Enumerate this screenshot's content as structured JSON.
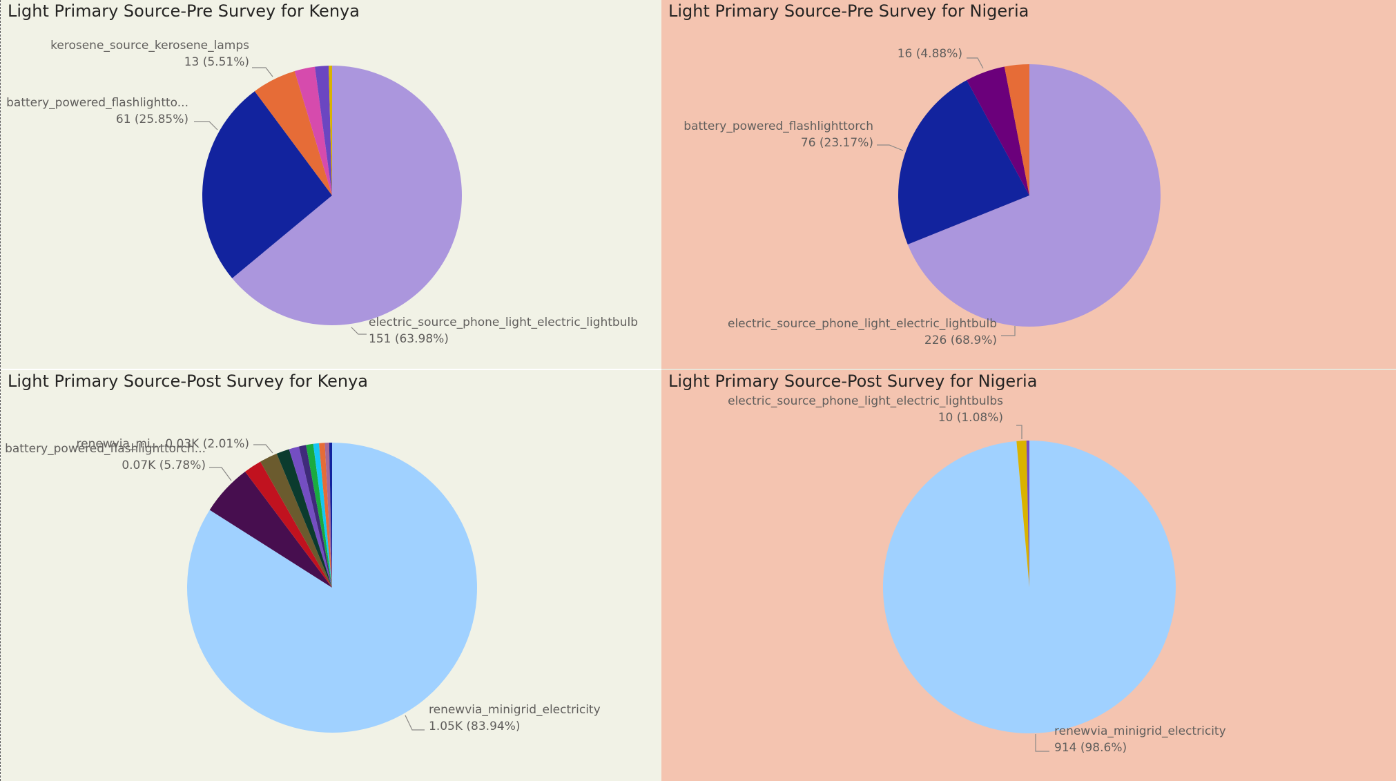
{
  "colors": {
    "left_panel_bg": "#f1f2e6",
    "right_panel_bg": "#f4c4b0",
    "title_color": "#252423",
    "label_color": "#605e5c",
    "leader_color": "#8a8886"
  },
  "chart_data": [
    {
      "type": "pie",
      "title": "Light Primary Source-Pre Survey for Kenya",
      "slices": [
        {
          "value": 151,
          "label": "electric_source_phone_light_electric_lightbulb",
          "data_label": "151 (63.98%)",
          "color": "#ab96dd"
        },
        {
          "value": 61,
          "label": "battery_powered_flashlightto...",
          "data_label": "61 (25.85%)",
          "color": "#12239e"
        },
        {
          "value": 13,
          "label": "kerosene_source_kerosene_lamps",
          "data_label": "13 (5.51%)",
          "color": "#e66c37"
        },
        {
          "value": 6,
          "label": "",
          "data_label": "",
          "color": "#d64bad"
        },
        {
          "value": 4,
          "label": "",
          "data_label": "",
          "color": "#6b46c1"
        },
        {
          "value": 1,
          "label": "",
          "data_label": "",
          "color": "#d9b300"
        }
      ]
    },
    {
      "type": "pie",
      "title": "Light Primary Source-Pre Survey for Nigeria",
      "slices": [
        {
          "value": 226,
          "label": "electric_source_phone_light_electric_lightbulb",
          "data_label": "226 (68.9%)",
          "color": "#ab96dd"
        },
        {
          "value": 76,
          "label": "battery_powered_flashlighttorch",
          "data_label": "76 (23.17%)",
          "color": "#12239e"
        },
        {
          "value": 16,
          "label": "",
          "data_label": "16 (4.88%)",
          "color": "#6b007b"
        },
        {
          "value": 10,
          "label": "",
          "data_label": "",
          "color": "#e66c37"
        }
      ]
    },
    {
      "type": "pie",
      "title": "Light Primary Source-Post Survey for Kenya",
      "slices": [
        {
          "value": 1050,
          "label": "renewvia_minigrid_electricity",
          "data_label": "1.05K (83.94%)",
          "color": "#a0d1ff"
        },
        {
          "value": 72,
          "label": "battery_powered_flashlighttorch...",
          "data_label": "0.07K (5.78%)",
          "color": "#470e4f"
        },
        {
          "value": 25,
          "label": "renewvia_mi...",
          "data_label": "0.03K (2.01%)",
          "color": "#c1121f"
        },
        {
          "value": 25,
          "label": "",
          "data_label": "",
          "color": "#6b5b2e"
        },
        {
          "value": 18,
          "label": "",
          "data_label": "",
          "color": "#0b3b2e"
        },
        {
          "value": 14,
          "label": "",
          "data_label": "",
          "color": "#744ec2"
        },
        {
          "value": 10,
          "label": "",
          "data_label": "",
          "color": "#3f2a7a"
        },
        {
          "value": 10,
          "label": "",
          "data_label": "",
          "color": "#1aab40"
        },
        {
          "value": 8,
          "label": "",
          "data_label": "",
          "color": "#15c6f4"
        },
        {
          "value": 8,
          "label": "",
          "data_label": "",
          "color": "#e66c37"
        },
        {
          "value": 6,
          "label": "",
          "data_label": "",
          "color": "#a66999"
        },
        {
          "value": 4,
          "label": "",
          "data_label": "",
          "color": "#12239e"
        }
      ]
    },
    {
      "type": "pie",
      "title": "Light Primary Source-Post Survey for Nigeria",
      "slices": [
        {
          "value": 914,
          "label": "renewvia_minigrid_electricity",
          "data_label": "914 (98.6%)",
          "color": "#a0d1ff"
        },
        {
          "value": 10,
          "label": "electric_source_phone_light_electric_lightbulbs",
          "data_label": "10 (1.08%)",
          "color": "#d9b300"
        },
        {
          "value": 3,
          "label": "",
          "data_label": "",
          "color": "#744ec2"
        }
      ]
    }
  ]
}
